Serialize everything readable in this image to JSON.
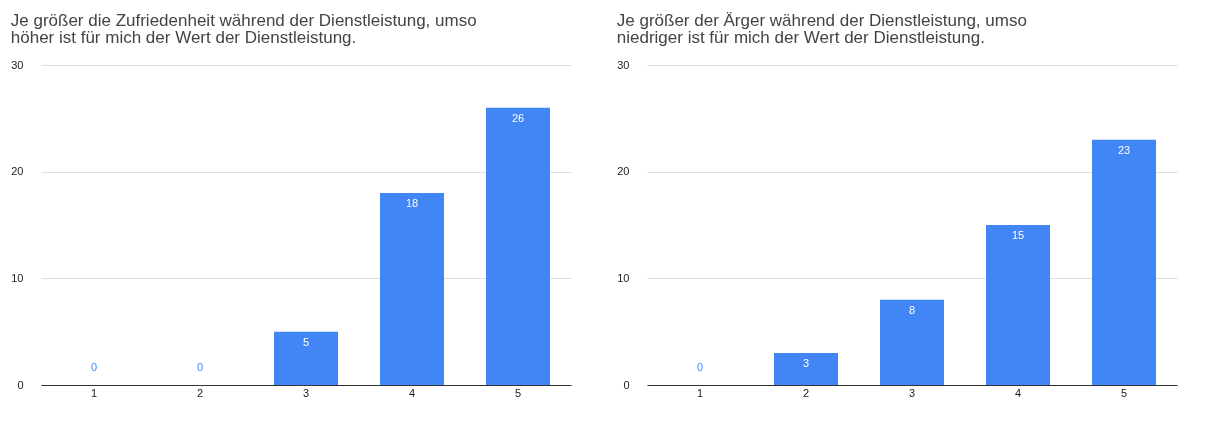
{
  "chart_data": [
    {
      "type": "bar",
      "title": "Je größer die Zufriedenheit während der Dienstleistung, umso\nhöher ist für mich der Wert der Dienstleistung.",
      "categories": [
        "1",
        "2",
        "3",
        "4",
        "5"
      ],
      "values": [
        0,
        0,
        5,
        18,
        26
      ],
      "color": "#4285f4",
      "ylim": [
        0,
        30
      ],
      "yticks": [
        0,
        10,
        20,
        30
      ],
      "grid": "y",
      "data_labels": true
    },
    {
      "type": "bar",
      "title": "Je  größer der Ärger während der Dienstleistung, umso\nniedriger ist für mich der Wert der Dienstleistung.",
      "categories": [
        "1",
        "2",
        "3",
        "4",
        "5"
      ],
      "values": [
        0,
        3,
        8,
        15,
        23
      ],
      "color": "#4285f4",
      "ylim": [
        0,
        30
      ],
      "yticks": [
        0,
        10,
        20,
        30
      ],
      "grid": "y",
      "data_labels": true
    }
  ]
}
